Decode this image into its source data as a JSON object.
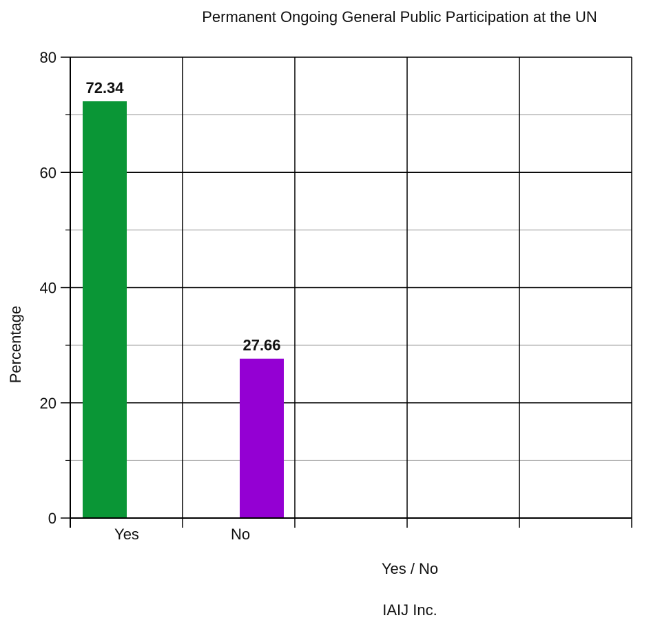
{
  "chart_data": {
    "type": "bar",
    "title": "Permanent Ongoing General Public Participation at the UN",
    "xlabel": "Yes / No",
    "ylabel": "Percentage",
    "footer": "IAIJ Inc.",
    "categories": [
      "Yes",
      "No"
    ],
    "values": [
      72.34,
      27.66
    ],
    "value_labels": [
      "72.34",
      "27.66"
    ],
    "colors": [
      "#0a9636",
      "#9400d3"
    ],
    "ylim": [
      0,
      80
    ],
    "yticks": [
      0,
      20,
      40,
      60,
      80
    ],
    "x_slots": 5,
    "grid": true,
    "legend": "none"
  }
}
